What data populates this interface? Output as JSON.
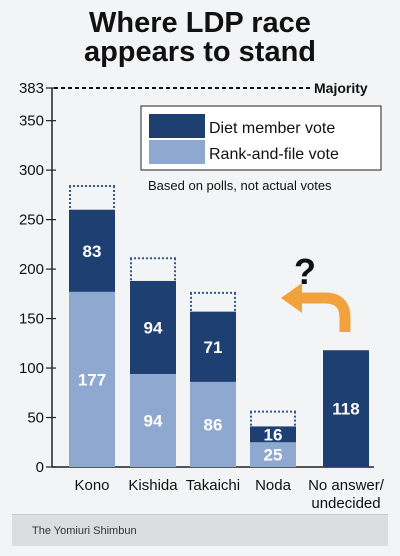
{
  "title_line1": "Where LDP race",
  "title_line2": "appears to stand",
  "credit": "The Yomiuri Shimbun",
  "colors": {
    "diet": "#1e3f72",
    "rank": "#8fa8cf",
    "arrow": "#f1a23e",
    "background": "#f3f4f5"
  },
  "chart_data": {
    "type": "bar",
    "stacked": true,
    "categories": [
      "Kono",
      "Kishida",
      "Takaichi",
      "Noda",
      "No answer/ undecided"
    ],
    "series": [
      {
        "name": "Rank-and-file vote",
        "values": [
          177,
          94,
          86,
          25,
          null
        ]
      },
      {
        "name": "Diet member vote",
        "values": [
          83,
          94,
          71,
          16,
          118
        ]
      }
    ],
    "bar_labels": {
      "Rank-and-file vote": [
        "177",
        "94",
        "86",
        "25",
        ""
      ],
      "Diet member vote": [
        "83",
        "94",
        "71",
        "16",
        "118"
      ]
    },
    "totals": [
      260,
      188,
      157,
      41,
      118
    ],
    "upper_range_marker": [
      284,
      211,
      176,
      56,
      null
    ],
    "ylim": [
      0,
      383
    ],
    "y_ticks": [
      0,
      50,
      100,
      150,
      200,
      250,
      300,
      350
    ],
    "y_tick_labels": [
      "0",
      "50",
      "100",
      "150",
      "200",
      "250",
      "300",
      "350"
    ],
    "reference_line": {
      "value": 383,
      "tick_label": "383",
      "label": "Majority"
    },
    "legend": {
      "position": "top-right",
      "entries": [
        "Diet member vote",
        "Rank-and-file vote"
      ],
      "note": "Based on polls, not actual votes"
    },
    "annotation": {
      "text": "?",
      "arrow_direction": "left"
    }
  }
}
